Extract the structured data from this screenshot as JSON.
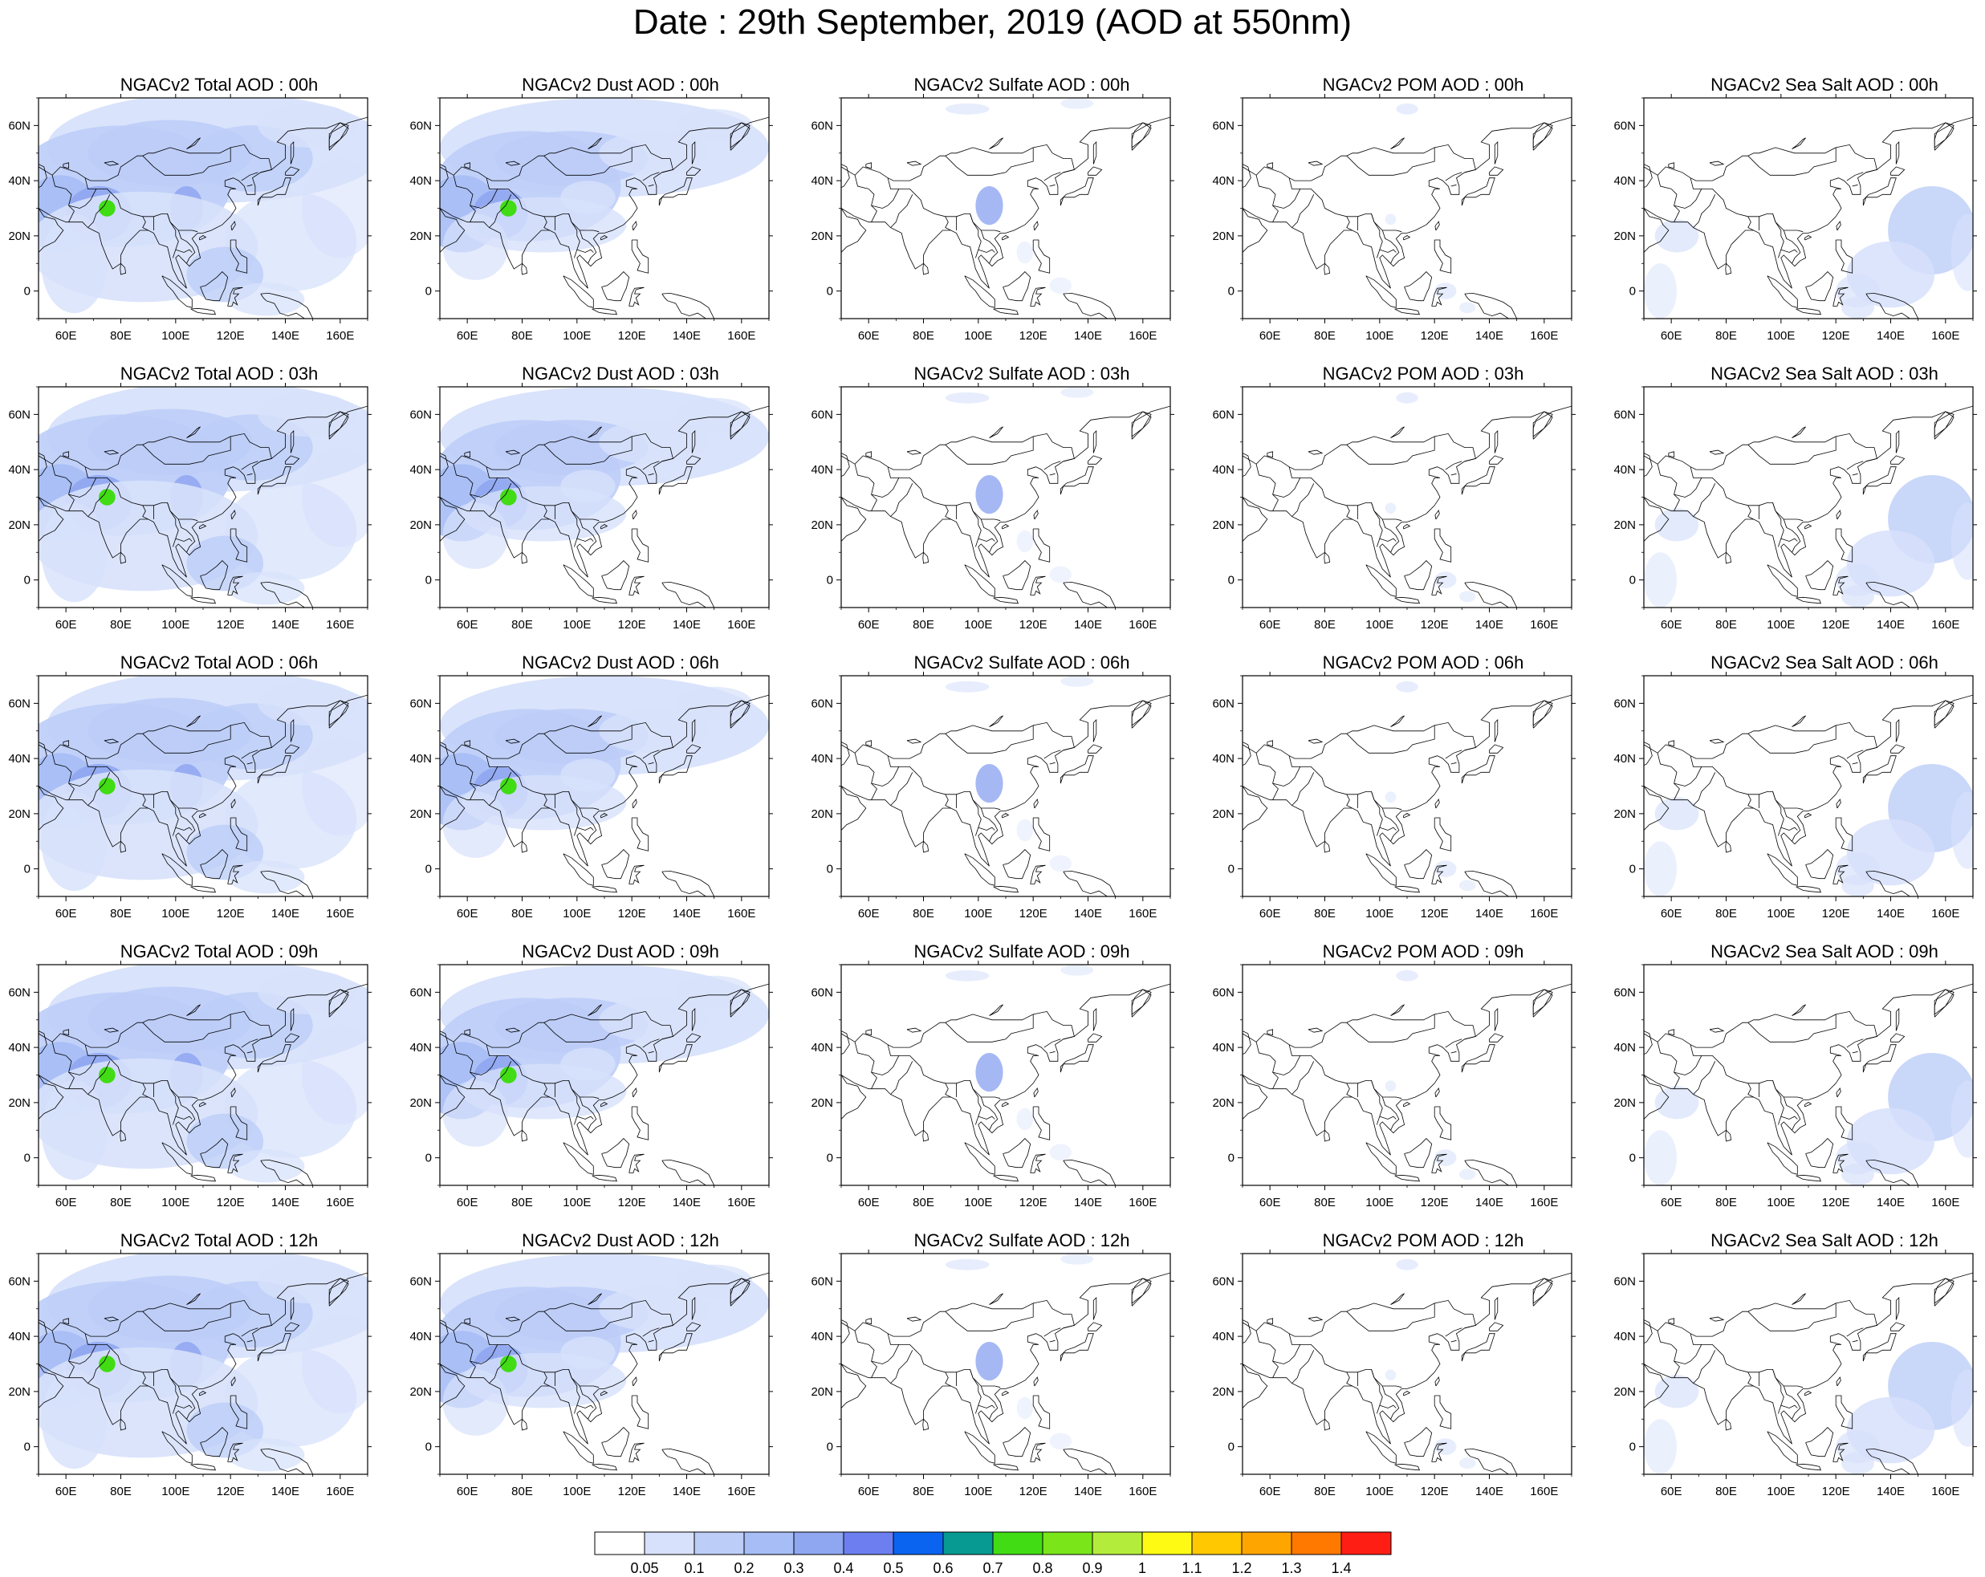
{
  "title": "Date : 29th September, 2019 (AOD at 550nm)",
  "map": {
    "lon_ticks": [
      "60E",
      "80E",
      "100E",
      "120E",
      "140E",
      "160E"
    ],
    "lat_ticks": [
      "60N",
      "40N",
      "20N",
      "0"
    ]
  },
  "panels": [
    {
      "title": "NGACv2 Total AOD : 00h",
      "species": "total",
      "hour": "00h"
    },
    {
      "title": "NGACv2 Dust AOD : 00h",
      "species": "dust",
      "hour": "00h"
    },
    {
      "title": "NGACv2 Sulfate AOD : 00h",
      "species": "sulfate",
      "hour": "00h"
    },
    {
      "title": "NGACv2 POM AOD : 00h",
      "species": "pom",
      "hour": "00h"
    },
    {
      "title": "NGACv2 Sea Salt AOD : 00h",
      "species": "seasalt",
      "hour": "00h"
    },
    {
      "title": "NGACv2 Total AOD : 03h",
      "species": "total",
      "hour": "03h"
    },
    {
      "title": "NGACv2 Dust AOD : 03h",
      "species": "dust",
      "hour": "03h"
    },
    {
      "title": "NGACv2 Sulfate AOD : 03h",
      "species": "sulfate",
      "hour": "03h"
    },
    {
      "title": "NGACv2 POM AOD : 03h",
      "species": "pom",
      "hour": "03h"
    },
    {
      "title": "NGACv2 Sea Salt AOD : 03h",
      "species": "seasalt",
      "hour": "03h"
    },
    {
      "title": "NGACv2 Total AOD : 06h",
      "species": "total",
      "hour": "06h"
    },
    {
      "title": "NGACv2 Dust AOD : 06h",
      "species": "dust",
      "hour": "06h"
    },
    {
      "title": "NGACv2 Sulfate AOD : 06h",
      "species": "sulfate",
      "hour": "06h"
    },
    {
      "title": "NGACv2 POM AOD : 06h",
      "species": "pom",
      "hour": "06h"
    },
    {
      "title": "NGACv2 Sea Salt AOD : 06h",
      "species": "seasalt",
      "hour": "06h"
    },
    {
      "title": "NGACv2 Total AOD : 09h",
      "species": "total",
      "hour": "09h"
    },
    {
      "title": "NGACv2 Dust AOD : 09h",
      "species": "dust",
      "hour": "09h"
    },
    {
      "title": "NGACv2 Sulfate AOD : 09h",
      "species": "sulfate",
      "hour": "09h"
    },
    {
      "title": "NGACv2 POM AOD : 09h",
      "species": "pom",
      "hour": "09h"
    },
    {
      "title": "NGACv2 Sea Salt  AOD : 09h",
      "species": "seasalt",
      "hour": "09h"
    },
    {
      "title": "NGACv2 Total AOD  : 12h",
      "species": "total",
      "hour": "12h"
    },
    {
      "title": "NGACv2 Dust AOD : 12h",
      "species": "dust",
      "hour": "12h"
    },
    {
      "title": "NGACv2 Sulfate AOD : 12h",
      "species": "sulfate",
      "hour": "12h"
    },
    {
      "title": "NGACv2 POM  AOD : 12h",
      "species": "pom",
      "hour": "12h"
    },
    {
      "title": "NGACv2 Sea Salt  AOD : 12h",
      "species": "seasalt",
      "hour": "12h"
    }
  ],
  "colorbar": {
    "labels": [
      "0.05",
      "0.1",
      "0.2",
      "0.3",
      "0.4",
      "0.5",
      "0.6",
      "0.7",
      "0.8",
      "0.9",
      "1",
      "1.1",
      "1.2",
      "1.3",
      "1.4"
    ],
    "colors": [
      "#ffffff",
      "#d7e1fb",
      "#bccdf8",
      "#a6bdf5",
      "#8fa6f1",
      "#6d7ff0",
      "#0a64f0",
      "#069a92",
      "#41dc14",
      "#7ae61a",
      "#b4ec3c",
      "#fffa14",
      "#ffc800",
      "#ffa500",
      "#ff7800",
      "#ff1e14"
    ]
  }
}
